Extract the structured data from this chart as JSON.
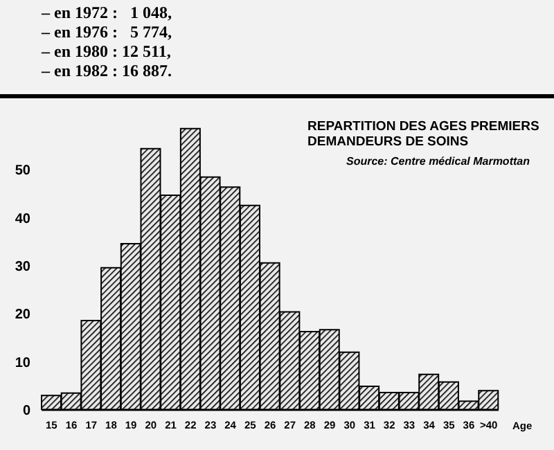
{
  "chart_data": {
    "type": "bar",
    "title": "REPARTITION DES AGES PREMIERS DEMANDEURS DE SOINS",
    "xlabel": "Age",
    "annotations": [
      "– en 1972 :   1 048,",
      "– en 1976 :   5 774,",
      "– en 1980 : 12 511,",
      "– en 1982 : 16 887.",
      "Source: Centre médical Marmottan"
    ],
    "categories": [
      "15",
      "16",
      "17",
      "18",
      "19",
      "20",
      "21",
      "22",
      "23",
      "24",
      "25",
      "26",
      "27",
      "28",
      "29",
      "30",
      "31",
      "32",
      "33",
      "34",
      "35",
      "36",
      ">40"
    ],
    "values": [
      3,
      3.5,
      18.6,
      29.6,
      34.6,
      54.4,
      44.7,
      58.6,
      48.5,
      46.4,
      42.6,
      30.6,
      20.4,
      16.3,
      16.7,
      12,
      4.9,
      3.6,
      3.6,
      7.4,
      5.8,
      1.8,
      4
    ],
    "color": "#000000",
    "ylim": [
      0,
      60
    ],
    "yticks": [
      0,
      10,
      20,
      30,
      40,
      50
    ],
    "grid": false,
    "legend": false
  }
}
